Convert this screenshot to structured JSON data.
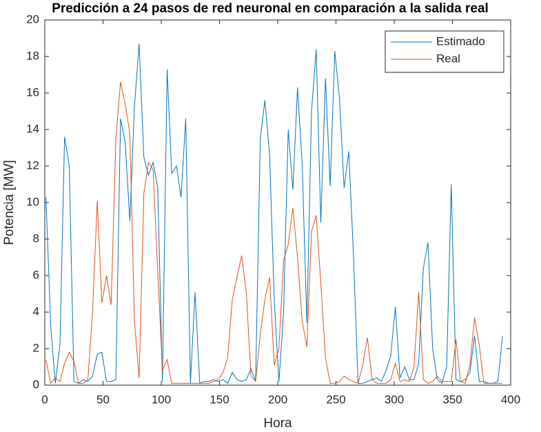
{
  "chart_data": {
    "type": "line",
    "title": "Predicción a 24 pasos de red neuronal en comparación a la salida real",
    "xlabel": "Hora",
    "ylabel": "Potencia [MW]",
    "xlim": [
      0,
      400
    ],
    "ylim": [
      0,
      20
    ],
    "xticks": [
      0,
      50,
      100,
      150,
      200,
      250,
      300,
      350,
      400
    ],
    "yticks": [
      0,
      2,
      4,
      6,
      8,
      10,
      12,
      14,
      16,
      18,
      20
    ],
    "legend": "top-right",
    "x": [
      1,
      5,
      9,
      13,
      17,
      21,
      25,
      29,
      33,
      37,
      41,
      45,
      49,
      53,
      57,
      61,
      65,
      69,
      73,
      77,
      81,
      85,
      89,
      93,
      97,
      101,
      105,
      109,
      113,
      117,
      121,
      125,
      129,
      133,
      137,
      141,
      145,
      149,
      153,
      157,
      161,
      165,
      169,
      173,
      177,
      181,
      185,
      189,
      193,
      197,
      201,
      205,
      209,
      213,
      217,
      221,
      225,
      229,
      233,
      237,
      241,
      245,
      249,
      253,
      257,
      261,
      265,
      269,
      273,
      277,
      281,
      285,
      289,
      293,
      297,
      301,
      305,
      309,
      313,
      317,
      321,
      325,
      329,
      333,
      337,
      341,
      345,
      349,
      353,
      357,
      361,
      365,
      369,
      373,
      377,
      381,
      385,
      389,
      393
    ],
    "series": [
      {
        "name": "Estimado",
        "color": "#0072BD",
        "values": [
          10.3,
          3.3,
          0.1,
          2.2,
          13.6,
          12,
          0.2,
          0.1,
          0.3,
          0.2,
          0.5,
          1.7,
          1.8,
          0.2,
          0.2,
          0.3,
          14.6,
          13.3,
          9,
          15.3,
          18.7,
          12.5,
          11.5,
          12.2,
          10.8,
          0.2,
          17.3,
          11.6,
          12,
          10.3,
          14.6,
          0.1,
          5.1,
          0.1,
          0.2,
          0.2,
          0.3,
          0.2,
          0.3,
          0.1,
          0.7,
          0.3,
          0.2,
          0.3,
          0.9,
          0.2,
          13.5,
          15.6,
          12.6,
          4.7,
          0.2,
          3.9,
          14,
          10.7,
          16.3,
          12.1,
          3.4,
          15,
          18.4,
          8.9,
          16.8,
          10.9,
          18.3,
          15.7,
          10.8,
          12.8,
          7.2,
          0.1,
          0.1,
          0.2,
          0.3,
          0.4,
          0.2,
          0.8,
          1.6,
          4.3,
          0.4,
          1,
          0.3,
          0.3,
          1.2,
          6.4,
          7.8,
          2,
          0.3,
          0.1,
          1,
          11,
          0.3,
          0.2,
          0.3,
          0.7,
          2.7,
          0.2,
          0.2,
          0.1,
          0.1,
          0.2,
          2.7
        ]
      },
      {
        "name": "Real",
        "color": "#D95319",
        "values": [
          1.4,
          0.1,
          0.4,
          0.2,
          1.2,
          1.8,
          1.3,
          0.1,
          0.1,
          0.3,
          4,
          10.1,
          4.5,
          6,
          4.4,
          13.5,
          16.6,
          15.4,
          13.8,
          3.5,
          0.4,
          10.5,
          12.2,
          11.8,
          6.2,
          0.8,
          1.4,
          0.1,
          0.1,
          0.1,
          0.1,
          0.1,
          0.1,
          0.1,
          0.1,
          0.1,
          0.2,
          0.3,
          0.7,
          1.5,
          4.7,
          5.9,
          7.1,
          5.1,
          0.5,
          0.2,
          2.8,
          4.7,
          5.9,
          1.1,
          2,
          6.8,
          7.7,
          9.7,
          7,
          3.5,
          2.1,
          8.4,
          9.3,
          5.6,
          1.5,
          0.1,
          0.1,
          0.2,
          0.5,
          0.3,
          0.2,
          0.1,
          1.1,
          2.6,
          0.3,
          0.1,
          0.1,
          0.1,
          0.3,
          1.2,
          0.2,
          0.3,
          0.2,
          1,
          5.1,
          0.3,
          0.1,
          0.2,
          0.5,
          0.2,
          0.2,
          0.2,
          2.5,
          0.2,
          0.1,
          1.1,
          3.7,
          2.2,
          0.1,
          0.1,
          0.1,
          0.1,
          0.1
        ]
      }
    ]
  }
}
